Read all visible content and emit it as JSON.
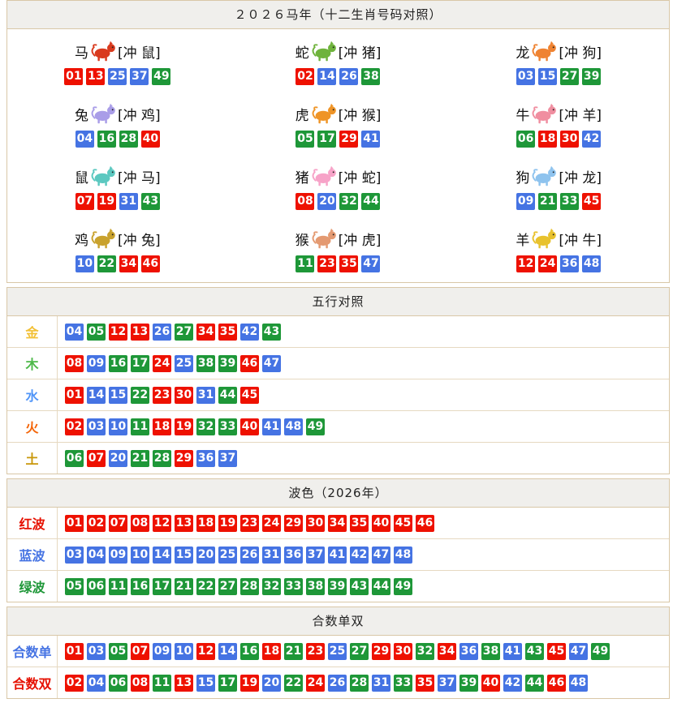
{
  "title": "２０２６马年（十二生肖号码对照）",
  "colors": {
    "red": "#ee1100",
    "blue": "#4573e3",
    "green": "#1e9738"
  },
  "wave_map": {
    "red": [
      "01",
      "02",
      "07",
      "08",
      "12",
      "13",
      "18",
      "19",
      "23",
      "24",
      "29",
      "30",
      "34",
      "35",
      "40",
      "45",
      "46"
    ],
    "blue": [
      "03",
      "04",
      "09",
      "10",
      "14",
      "15",
      "20",
      "25",
      "26",
      "31",
      "36",
      "37",
      "41",
      "42",
      "47",
      "48"
    ],
    "green": [
      "05",
      "06",
      "11",
      "16",
      "17",
      "21",
      "22",
      "27",
      "28",
      "32",
      "33",
      "38",
      "39",
      "43",
      "44",
      "49"
    ]
  },
  "zodiac": {
    "cells": [
      {
        "name": "马",
        "clash": "[冲 鼠]",
        "icon": "horse-icon",
        "icon_color": "#d93a1e",
        "numbers": [
          "01",
          "13",
          "25",
          "37",
          "49"
        ]
      },
      {
        "name": "蛇",
        "clash": "[冲 猪]",
        "icon": "snake-icon",
        "icon_color": "#6fb33c",
        "numbers": [
          "02",
          "14",
          "26",
          "38"
        ]
      },
      {
        "name": "龙",
        "clash": "[冲 狗]",
        "icon": "dragon-icon",
        "icon_color": "#ef8332",
        "numbers": [
          "03",
          "15",
          "27",
          "39"
        ]
      },
      {
        "name": "兔",
        "clash": "[冲 鸡]",
        "icon": "rabbit-icon",
        "icon_color": "#a99de8",
        "numbers": [
          "04",
          "16",
          "28",
          "40"
        ]
      },
      {
        "name": "虎",
        "clash": "[冲 猴]",
        "icon": "tiger-icon",
        "icon_color": "#ef9426",
        "numbers": [
          "05",
          "17",
          "29",
          "41"
        ]
      },
      {
        "name": "牛",
        "clash": "[冲 羊]",
        "icon": "ox-icon",
        "icon_color": "#f08ea0",
        "numbers": [
          "06",
          "18",
          "30",
          "42"
        ]
      },
      {
        "name": "鼠",
        "clash": "[冲 马]",
        "icon": "rat-icon",
        "icon_color": "#5cc8c0",
        "numbers": [
          "07",
          "19",
          "31",
          "43"
        ]
      },
      {
        "name": "猪",
        "clash": "[冲 蛇]",
        "icon": "pig-icon",
        "icon_color": "#f7a3c8",
        "numbers": [
          "08",
          "20",
          "32",
          "44"
        ]
      },
      {
        "name": "狗",
        "clash": "[冲 龙]",
        "icon": "dog-icon",
        "icon_color": "#8ec3ee",
        "numbers": [
          "09",
          "21",
          "33",
          "45"
        ]
      },
      {
        "name": "鸡",
        "clash": "[冲 兔]",
        "icon": "rooster-icon",
        "icon_color": "#c9a22e",
        "numbers": [
          "10",
          "22",
          "34",
          "46"
        ]
      },
      {
        "name": "猴",
        "clash": "[冲 虎]",
        "icon": "monkey-icon",
        "icon_color": "#e49a72",
        "numbers": [
          "11",
          "23",
          "35",
          "47"
        ]
      },
      {
        "name": "羊",
        "clash": "[冲 牛]",
        "icon": "goat-icon",
        "icon_color": "#e8c22e",
        "numbers": [
          "12",
          "24",
          "36",
          "48"
        ]
      }
    ]
  },
  "sections": [
    {
      "header": "五行对照",
      "rows": [
        {
          "label": "金",
          "label_color": "#f2c035",
          "numbers": [
            "04",
            "05",
            "12",
            "13",
            "26",
            "27",
            "34",
            "35",
            "42",
            "43"
          ]
        },
        {
          "label": "木",
          "label_color": "#4cb848",
          "numbers": [
            "08",
            "09",
            "16",
            "17",
            "24",
            "25",
            "38",
            "39",
            "46",
            "47"
          ]
        },
        {
          "label": "水",
          "label_color": "#5095f8",
          "numbers": [
            "01",
            "14",
            "15",
            "22",
            "23",
            "30",
            "31",
            "44",
            "45"
          ]
        },
        {
          "label": "火",
          "label_color": "#f4660a",
          "numbers": [
            "02",
            "03",
            "10",
            "11",
            "18",
            "19",
            "32",
            "33",
            "40",
            "41",
            "48",
            "49"
          ]
        },
        {
          "label": "土",
          "label_color": "#c9970a",
          "numbers": [
            "06",
            "07",
            "20",
            "21",
            "28",
            "29",
            "36",
            "37"
          ]
        }
      ]
    },
    {
      "header": "波色（2026年）",
      "rows": [
        {
          "label": "红波",
          "label_color": "#e61000",
          "numbers": [
            "01",
            "02",
            "07",
            "08",
            "12",
            "13",
            "18",
            "19",
            "23",
            "24",
            "29",
            "30",
            "34",
            "35",
            "40",
            "45",
            "46"
          ]
        },
        {
          "label": "蓝波",
          "label_color": "#4573e3",
          "numbers": [
            "03",
            "04",
            "09",
            "10",
            "14",
            "15",
            "20",
            "25",
            "26",
            "31",
            "36",
            "37",
            "41",
            "42",
            "47",
            "48"
          ]
        },
        {
          "label": "绿波",
          "label_color": "#1e9738",
          "numbers": [
            "05",
            "06",
            "11",
            "16",
            "17",
            "21",
            "22",
            "27",
            "28",
            "32",
            "33",
            "38",
            "39",
            "43",
            "44",
            "49"
          ]
        }
      ]
    },
    {
      "header": "合数单双",
      "rows": [
        {
          "label": "合数单",
          "label_color": "#4573e3",
          "numbers": [
            "01",
            "03",
            "05",
            "07",
            "09",
            "10",
            "12",
            "14",
            "16",
            "18",
            "21",
            "23",
            "25",
            "27",
            "29",
            "30",
            "32",
            "34",
            "36",
            "38",
            "41",
            "43",
            "45",
            "47",
            "49"
          ]
        },
        {
          "label": "合数双",
          "label_color": "#e61000",
          "numbers": [
            "02",
            "04",
            "06",
            "08",
            "11",
            "13",
            "15",
            "17",
            "19",
            "20",
            "22",
            "24",
            "26",
            "28",
            "31",
            "33",
            "35",
            "37",
            "39",
            "40",
            "42",
            "44",
            "46",
            "48"
          ]
        }
      ]
    }
  ]
}
